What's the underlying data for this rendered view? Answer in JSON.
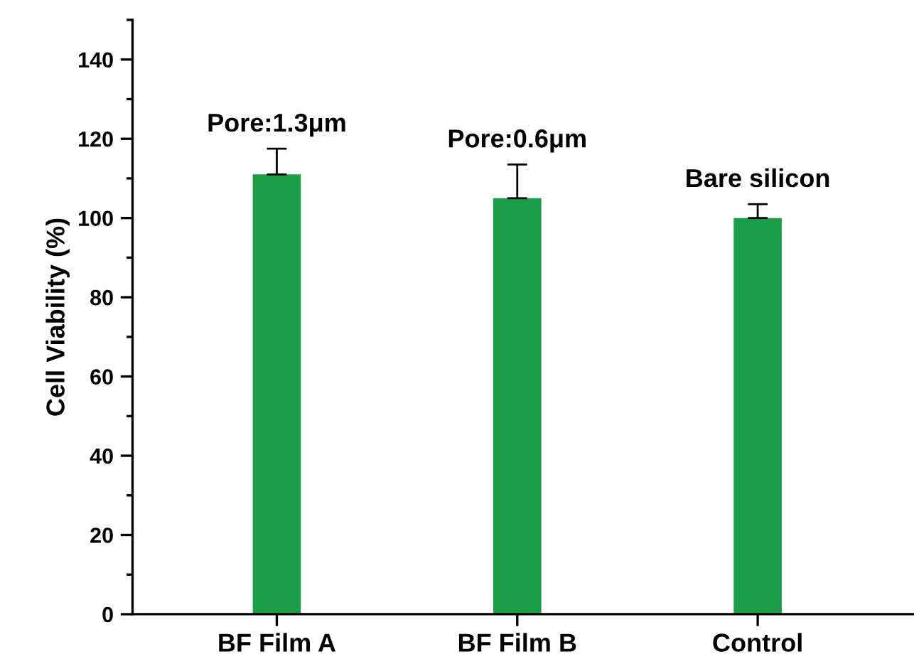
{
  "chart_data": {
    "type": "bar",
    "ylabel": "Cell Viability (%)",
    "categories": [
      "BF Film A",
      "BF Film B",
      "Control"
    ],
    "values": [
      111,
      105,
      100
    ],
    "errors": [
      [
        111,
        117.5
      ],
      [
        105,
        113.5
      ],
      [
        100,
        103.5
      ]
    ],
    "color": "#1a9e48",
    "ylim": [
      0,
      150
    ],
    "yticks": [
      0,
      20,
      40,
      60,
      80,
      100,
      120,
      140
    ],
    "annotations": [
      {
        "text": "Pore:1.3μm",
        "x": "BF Film A",
        "y": 117.5
      },
      {
        "text": "Pore:0.6μm",
        "x": "BF Film B",
        "y": 113.5
      },
      {
        "text": "Bare silicon",
        "x": "Control",
        "y": 103.5
      }
    ],
    "grid": false,
    "legend": false
  }
}
